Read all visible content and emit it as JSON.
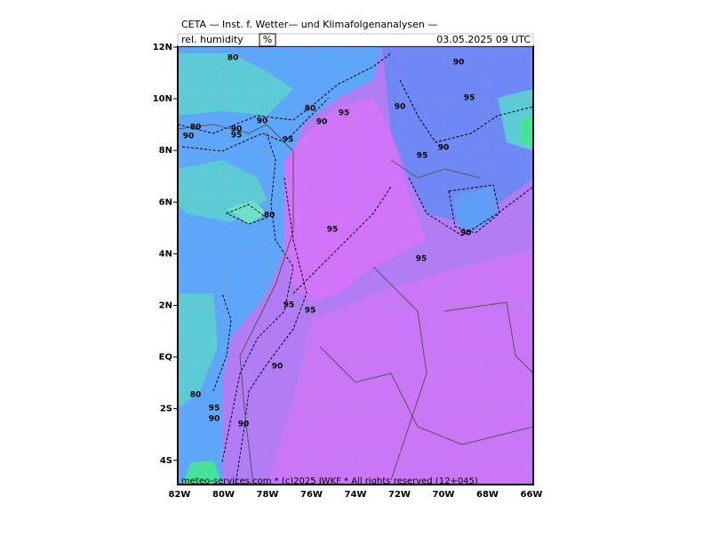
{
  "header": {
    "title": "CETA — Inst. f. Wetter— und Klimafolgenanalysen —",
    "variable": "rel. humidity",
    "unit": "%",
    "datetime": "03.05.2025 09 UTC"
  },
  "footer": "meteo-services.com * (c)2025 IWKF * All rights reserved (12+045)",
  "lat_labels": [
    "12N",
    "10N",
    "8N",
    "6N",
    "4N",
    "2N",
    "EQ",
    "2S",
    "4S"
  ],
  "lon_labels": [
    "82W",
    "80W",
    "78W",
    "76W",
    "74W",
    "72W",
    "70W",
    "68W",
    "66W"
  ],
  "contour_labels": [
    80,
    90,
    95,
    90,
    80,
    90,
    95,
    90,
    80,
    90,
    90,
    95,
    95,
    95,
    90,
    80,
    95,
    90,
    95,
    95,
    95,
    90,
    80,
    95,
    90,
    90
  ]
}
